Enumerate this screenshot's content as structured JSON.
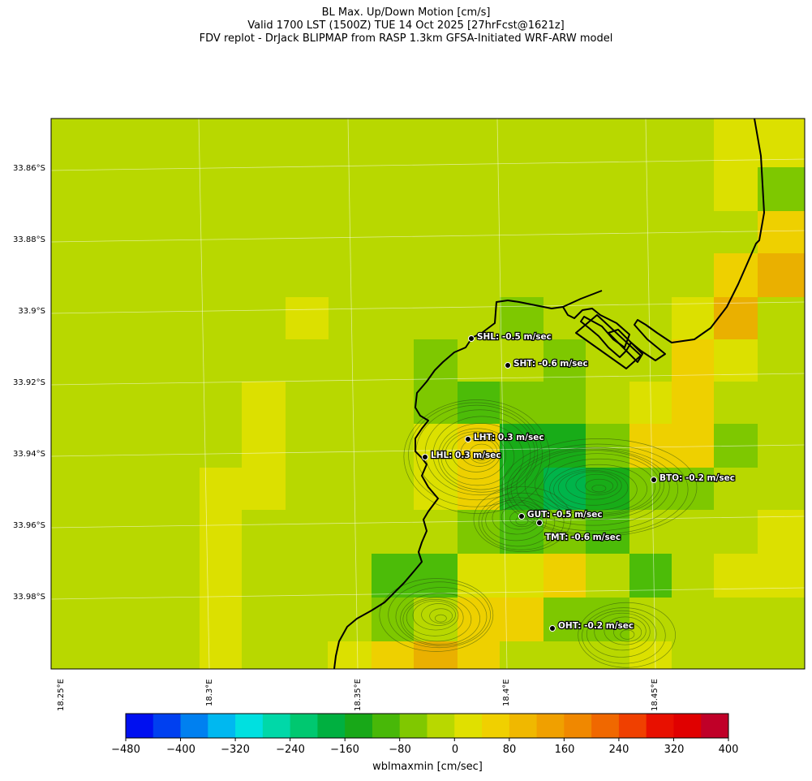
{
  "title": {
    "line1": "BL Max. Up/Down Motion [cm/s]",
    "line2": "Valid 1700 LST (1500Z) TUE 14 Oct 2025 [27hrFcst@1621z]",
    "line3": "FDV replot - DrJack BLIPMAP from RASP 1.3km GFSA-Initiated WRF-ARW model"
  },
  "axes": {
    "lat_labels": [
      "33.86°S",
      "33.88°S",
      "33.9°S",
      "33.92°S",
      "33.94°S",
      "33.96°S",
      "33.98°S"
    ],
    "lon_labels": [
      "18.25°E",
      "18.3°E",
      "18.35°E",
      "18.4°E",
      "18.45°E"
    ]
  },
  "colorbar": {
    "label": "wblmaxmin [cm/sec]",
    "ticks": [
      "−480",
      "−400",
      "−320",
      "−240",
      "−160",
      "−80",
      "0",
      "80",
      "160",
      "240",
      "320",
      "400"
    ],
    "colors": [
      "#0010f0",
      "#0040f0",
      "#0080f0",
      "#00b8f0",
      "#00e0e0",
      "#00d8a8",
      "#00c870",
      "#00b040",
      "#18a818",
      "#48b808",
      "#80c800",
      "#b8d800",
      "#e0e000",
      "#f0d000",
      "#f0b800",
      "#f0a000",
      "#f08800",
      "#f06800",
      "#f04000",
      "#e81000",
      "#e00000",
      "#c00028"
    ]
  },
  "stations": [
    {
      "code": "SHL",
      "label": "SHL: -0.5 m/sec",
      "value": -0.5
    },
    {
      "code": "SHT",
      "label": "SHT: -0.6 m/sec",
      "value": -0.6
    },
    {
      "code": "LHT",
      "label": "LHT: 0.3 m/sec",
      "value": 0.3
    },
    {
      "code": "LHL",
      "label": "LHL: 0.3 m/sec",
      "value": 0.3
    },
    {
      "code": "BTO",
      "label": "BTO: -0.2 m/sec",
      "value": -0.2
    },
    {
      "code": "GUT",
      "label": "GUT: -0.5 m/sec",
      "value": -0.5
    },
    {
      "code": "TMT",
      "label": "TMT: -0.6 m/sec",
      "value": -0.6
    },
    {
      "code": "OHT",
      "label": "OHT: -0.2 m/sec",
      "value": -0.2
    }
  ],
  "field_colors": {
    "base": "#b8d800",
    "yellow": "#dce000",
    "gold": "#eed000",
    "orange": "#eab000",
    "green1": "#7ec800",
    "green2": "#4cbc08",
    "green3": "#18ac18",
    "green4": "#00b44a"
  },
  "coast_color": "#000000"
}
